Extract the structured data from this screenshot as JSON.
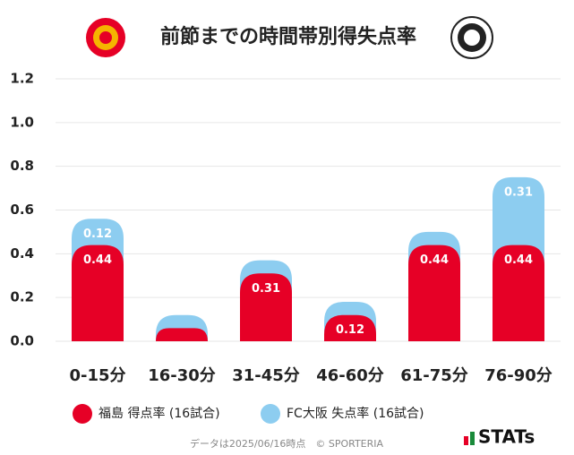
{
  "title": "前節までの時間帯別得失点率",
  "chart_data": {
    "type": "bar",
    "stacked": true,
    "categories": [
      "0-15分",
      "16-30分",
      "31-45分",
      "46-60分",
      "61-75分",
      "76-90分"
    ],
    "series": [
      {
        "name": "福島 得点率 (16試合)",
        "color": "#e60026",
        "values": [
          0.44,
          0.06,
          0.31,
          0.12,
          0.44,
          0.44
        ]
      },
      {
        "name": "FC大阪 失点率 (16試合)",
        "color": "#8dcdf0",
        "values": [
          0.12,
          0.06,
          0.06,
          0.06,
          0.06,
          0.31
        ]
      }
    ],
    "ylim": [
      0,
      1.2
    ],
    "yticks": [
      {
        "value": 0,
        "label": "0.0"
      },
      0.2,
      0.4,
      0.6,
      0.8,
      {
        "value": 1,
        "label": "1.0"
      },
      1.2
    ],
    "grid": true
  },
  "footer": "データは2025/06/16時点　© SPORTERIA",
  "brand": "STATs"
}
